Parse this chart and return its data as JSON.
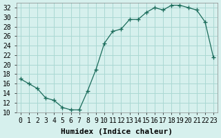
{
  "x": [
    0,
    1,
    2,
    3,
    4,
    5,
    6,
    7,
    8,
    9,
    10,
    11,
    12,
    13,
    14,
    15,
    16,
    17,
    18,
    19,
    20,
    21,
    22,
    23
  ],
  "y": [
    17,
    16,
    15,
    13,
    12.5,
    11,
    10.5,
    10.5,
    14.5,
    19,
    24.5,
    27,
    27.5,
    29.5,
    29.5,
    31,
    32,
    31.5,
    32.5,
    32.5,
    32,
    31.5,
    29,
    21.5
  ],
  "line_color": "#1a6b5a",
  "marker": "P",
  "marker_size": 3,
  "bg_color": "#d6f0ed",
  "grid_color": "#aad8d3",
  "xlabel": "Humidex (Indice chaleur)",
  "ylabel": "",
  "title": "",
  "xlim": [
    -0.5,
    23.5
  ],
  "ylim": [
    10,
    33
  ],
  "yticks": [
    10,
    12,
    14,
    16,
    18,
    20,
    22,
    24,
    26,
    28,
    30,
    32
  ],
  "xticks": [
    0,
    1,
    2,
    3,
    4,
    5,
    6,
    7,
    8,
    9,
    10,
    11,
    12,
    13,
    14,
    15,
    16,
    17,
    18,
    19,
    20,
    21,
    22,
    23
  ],
  "xlabel_fontsize": 8,
  "tick_fontsize": 7
}
